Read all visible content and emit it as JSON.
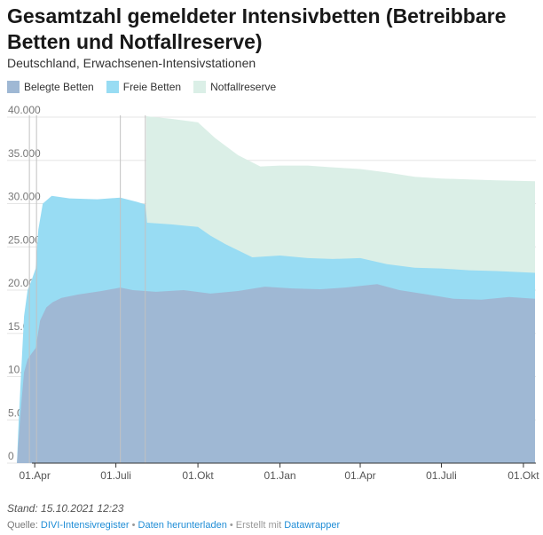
{
  "title": "Gesamtzahl gemeldeter Intensivbetten (Betreibbare Betten und Notfallreserve)",
  "subtitle": "Deutschland, Erwachsenen-Intensivstationen",
  "legend": [
    {
      "label": "Belegte Betten",
      "color": "#9fb8d4"
    },
    {
      "label": "Freie Betten",
      "color": "#98dcf3"
    },
    {
      "label": "Notfallreserve",
      "color": "#dbefe7"
    }
  ],
  "footer": {
    "stand": "Stand: 15.10.2021 12:23",
    "source_prefix": "Quelle: ",
    "source_link": "DIVI-Intensivregister",
    "sep1": " • ",
    "download": "Daten herunterladen",
    "sep2": " • Erstellt mit ",
    "datawrapper": "Datawrapper"
  },
  "chart_data": {
    "type": "area",
    "stacked": true,
    "x_unit": "date",
    "ylim": [
      0,
      40000
    ],
    "xlim": [
      "2020-03-01",
      "2021-10-15"
    ],
    "y_ticks": [
      0,
      5000,
      10000,
      15000,
      20000,
      25000,
      30000,
      35000,
      40000
    ],
    "y_tick_labels": [
      "0",
      "5.000",
      "10.000",
      "15.000",
      "20.000",
      "25.000",
      "30.000",
      "35.000",
      "40.000"
    ],
    "x_ticks": [
      "2020-04-01",
      "2020-07-01",
      "2020-10-01",
      "2021-01-01",
      "2021-04-01",
      "2021-07-01",
      "2021-10-01"
    ],
    "x_tick_labels": [
      "01.Apr",
      "01.Juli",
      "01.Okt",
      "01.Jan",
      "01.Apr",
      "01.Juli",
      "01.Okt"
    ],
    "grid": true,
    "legend_position": "top-left",
    "vertical_markers": [
      "2020-03-26",
      "2020-04-03",
      "2020-07-06",
      "2020-08-03"
    ],
    "series": [
      {
        "name": "Belegte Betten",
        "color": "#9fb8d4",
        "points": [
          [
            "2020-03-12",
            0
          ],
          [
            "2020-03-14",
            3000
          ],
          [
            "2020-03-17",
            7000
          ],
          [
            "2020-03-20",
            10500
          ],
          [
            "2020-03-24",
            12000
          ],
          [
            "2020-03-28",
            12600
          ],
          [
            "2020-04-02",
            13300
          ],
          [
            "2020-04-07",
            16500
          ],
          [
            "2020-04-14",
            18000
          ],
          [
            "2020-04-21",
            18600
          ],
          [
            "2020-05-01",
            19100
          ],
          [
            "2020-05-20",
            19500
          ],
          [
            "2020-06-15",
            19900
          ],
          [
            "2020-07-06",
            20300
          ],
          [
            "2020-07-20",
            20000
          ],
          [
            "2020-08-15",
            19800
          ],
          [
            "2020-09-15",
            20000
          ],
          [
            "2020-10-15",
            19600
          ],
          [
            "2020-11-15",
            19900
          ],
          [
            "2020-12-15",
            20400
          ],
          [
            "2021-01-15",
            20200
          ],
          [
            "2021-02-15",
            20100
          ],
          [
            "2021-03-15",
            20300
          ],
          [
            "2021-04-20",
            20700
          ],
          [
            "2021-05-15",
            20000
          ],
          [
            "2021-06-15",
            19500
          ],
          [
            "2021-07-15",
            19000
          ],
          [
            "2021-08-15",
            18900
          ],
          [
            "2021-09-15",
            19200
          ],
          [
            "2021-10-14",
            19000
          ]
        ]
      },
      {
        "name": "Freie Betten",
        "color": "#98dcf3",
        "points": [
          [
            "2020-03-12",
            0
          ],
          [
            "2020-03-14",
            5000
          ],
          [
            "2020-03-17",
            11000
          ],
          [
            "2020-03-20",
            17000
          ],
          [
            "2020-03-24",
            20000
          ],
          [
            "2020-03-28",
            21000
          ],
          [
            "2020-04-02",
            22500
          ],
          [
            "2020-04-05",
            27000
          ],
          [
            "2020-04-10",
            30000
          ],
          [
            "2020-04-20",
            30900
          ],
          [
            "2020-05-10",
            30600
          ],
          [
            "2020-06-10",
            30500
          ],
          [
            "2020-07-06",
            30700
          ],
          [
            "2020-07-25",
            30200
          ],
          [
            "2020-08-03",
            29900
          ],
          [
            "2020-08-05",
            27800
          ],
          [
            "2020-09-01",
            27600
          ],
          [
            "2020-10-01",
            27300
          ],
          [
            "2020-10-15",
            26300
          ],
          [
            "2020-11-01",
            25300
          ],
          [
            "2020-12-01",
            23800
          ],
          [
            "2021-01-01",
            24000
          ],
          [
            "2021-02-01",
            23700
          ],
          [
            "2021-03-01",
            23600
          ],
          [
            "2021-04-01",
            23700
          ],
          [
            "2021-05-01",
            23000
          ],
          [
            "2021-06-01",
            22600
          ],
          [
            "2021-07-01",
            22500
          ],
          [
            "2021-08-01",
            22300
          ],
          [
            "2021-09-01",
            22200
          ],
          [
            "2021-10-14",
            22000
          ]
        ]
      },
      {
        "name": "Notfallreserve",
        "color": "#dbefe7",
        "points": [
          [
            "2020-08-03",
            0
          ],
          [
            "2020-08-04",
            40100
          ],
          [
            "2020-09-01",
            39800
          ],
          [
            "2020-10-01",
            39400
          ],
          [
            "2020-10-20",
            37600
          ],
          [
            "2020-11-15",
            35600
          ],
          [
            "2020-12-10",
            34300
          ],
          [
            "2021-01-01",
            34400
          ],
          [
            "2021-02-01",
            34400
          ],
          [
            "2021-03-01",
            34200
          ],
          [
            "2021-04-01",
            34000
          ],
          [
            "2021-05-01",
            33600
          ],
          [
            "2021-06-01",
            33100
          ],
          [
            "2021-07-01",
            32900
          ],
          [
            "2021-08-01",
            32800
          ],
          [
            "2021-09-01",
            32700
          ],
          [
            "2021-10-14",
            32600
          ]
        ]
      }
    ]
  }
}
